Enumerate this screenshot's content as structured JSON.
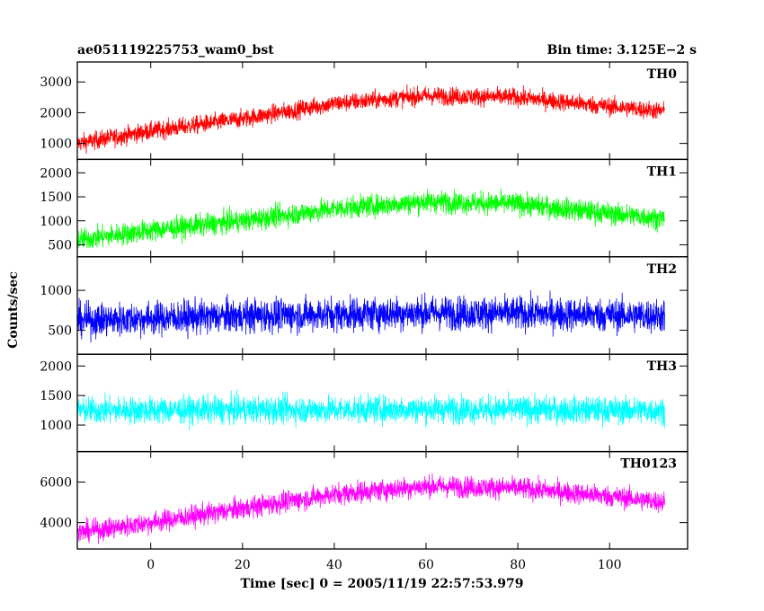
{
  "header": {
    "object_name": "ae051119225753_wam0_bst",
    "bin_time": "Bin time: 3.125E−2 s"
  },
  "colors": {
    "TH0": "#ff0000",
    "TH1": "#00ff00",
    "TH2": "#0000ff",
    "TH3": "#00ffff",
    "TH0123": "#ff00ff",
    "frame": "#000000",
    "background": "#ffffff"
  },
  "chart_data": {
    "type": "line",
    "layout": "stacked-panels",
    "xlabel": "Time [sec] 0 = 2005/11/19 22:57:53.979",
    "ylabel": "Counts/sec",
    "xlim": [
      -16,
      117
    ],
    "x_range_of_data": [
      -16,
      112
    ],
    "x_ticks": [
      0,
      20,
      40,
      60,
      80,
      100
    ],
    "grid": false,
    "panels": [
      {
        "name": "TH0",
        "ylim": [
          480,
          3650
        ],
        "y_ticks": [
          1000,
          2000,
          3000
        ],
        "trend_x": [
          -16,
          0,
          20,
          40,
          60,
          80,
          100,
          112
        ],
        "trend_y": [
          1000,
          1400,
          1800,
          2300,
          2550,
          2500,
          2200,
          2050
        ],
        "noise_amplitude": 420
      },
      {
        "name": "TH1",
        "ylim": [
          250,
          2280
        ],
        "y_ticks": [
          500,
          1000,
          1500,
          2000
        ],
        "trend_x": [
          -16,
          0,
          20,
          40,
          60,
          80,
          100,
          112
        ],
        "trend_y": [
          600,
          800,
          1000,
          1250,
          1400,
          1350,
          1150,
          1050
        ],
        "noise_amplitude": 330
      },
      {
        "name": "TH2",
        "ylim": [
          200,
          1420
        ],
        "y_ticks": [
          500,
          1000
        ],
        "trend_x": [
          -16,
          0,
          20,
          40,
          60,
          80,
          100,
          112
        ],
        "trend_y": [
          620,
          650,
          680,
          700,
          720,
          710,
          690,
          680
        ],
        "noise_amplitude": 300
      },
      {
        "name": "TH3",
        "ylim": [
          550,
          2200
        ],
        "y_ticks": [
          1000,
          1500,
          2000
        ],
        "trend_x": [
          -16,
          0,
          20,
          40,
          60,
          80,
          100,
          112
        ],
        "trend_y": [
          1250,
          1250,
          1260,
          1260,
          1270,
          1260,
          1250,
          1250
        ],
        "noise_amplitude": 330
      },
      {
        "name": "TH0123",
        "ylim": [
          2700,
          7500
        ],
        "y_ticks": [
          4000,
          6000
        ],
        "trend_x": [
          -16,
          0,
          20,
          40,
          60,
          80,
          100,
          112
        ],
        "trend_y": [
          3500,
          4000,
          4700,
          5400,
          5800,
          5700,
          5300,
          5000
        ],
        "noise_amplitude": 750
      }
    ]
  }
}
